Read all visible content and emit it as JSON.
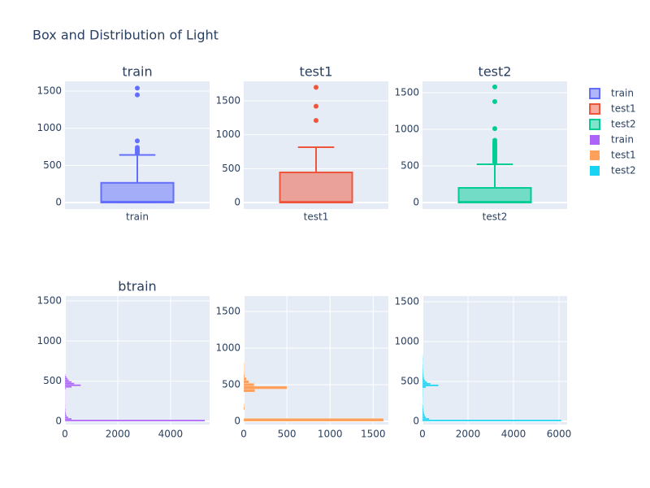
{
  "title": "Box and Distribution of Light",
  "chart_data": [
    {
      "type": "box",
      "title": "train",
      "categories": [
        "train"
      ],
      "series": [
        {
          "name": "train",
          "color": "#636efa",
          "min": 0,
          "q1": 0,
          "median": 10,
          "q3": 265,
          "max": 640,
          "outliers": [
            660,
            680,
            700,
            720,
            740,
            830,
            1450,
            1540
          ]
        }
      ],
      "ylim": [
        -88,
        1632
      ],
      "yticks": [
        0,
        500,
        1000,
        1500
      ],
      "grid": true
    },
    {
      "type": "box",
      "title": "test1",
      "categories": [
        "test1"
      ],
      "series": [
        {
          "name": "test1",
          "color": "#ef553b",
          "min": 0,
          "q1": 0,
          "median": 10,
          "q3": 444,
          "max": 816,
          "outliers": [
            1210,
            1420,
            1700
          ]
        }
      ],
      "ylim": [
        -96,
        1788
      ],
      "yticks": [
        0,
        500,
        1000,
        1500
      ],
      "grid": true
    },
    {
      "type": "box",
      "title": "test2",
      "categories": [
        "test2"
      ],
      "series": [
        {
          "name": "test2",
          "color": "#00cc96",
          "min": 0,
          "q1": 0,
          "median": 10,
          "q3": 200,
          "max": 522,
          "outliers": [
            540,
            560,
            580,
            600,
            620,
            640,
            660,
            680,
            700,
            720,
            740,
            760,
            780,
            800,
            820,
            850,
            1010,
            1380,
            1580
          ]
        }
      ],
      "ylim": [
        -89,
        1656
      ],
      "yticks": [
        0,
        500,
        1000,
        1500
      ],
      "grid": true
    },
    {
      "type": "histogram",
      "orientation": "horizontal",
      "title": "btrain",
      "bins": [
        0,
        20,
        40,
        60,
        80,
        100,
        120,
        140,
        160,
        180,
        200,
        220,
        240,
        260,
        280,
        300,
        320,
        340,
        360,
        380,
        400,
        420,
        440,
        460,
        480,
        500,
        520,
        540,
        560,
        580,
        600
      ],
      "series": [
        {
          "name": "train",
          "color": "#ab63fa",
          "values": [
            5300,
            250,
            120,
            60,
            40,
            30,
            20,
            20,
            15,
            15,
            10,
            10,
            10,
            10,
            10,
            10,
            10,
            10,
            10,
            10,
            30,
            250,
            600,
            350,
            250,
            150,
            100,
            60,
            20,
            10
          ]
        }
      ],
      "xlim": [
        0,
        5480
      ],
      "xticks": [
        0,
        2000,
        4000
      ],
      "ylim": [
        -40,
        1560
      ],
      "yticks": [
        0,
        500,
        1000,
        1500
      ],
      "grid": true
    },
    {
      "type": "histogram",
      "orientation": "horizontal",
      "bins": [
        0,
        40,
        80,
        120,
        160,
        200,
        240,
        280,
        320,
        360,
        400,
        440,
        480,
        520,
        560,
        600,
        640,
        680,
        720,
        760,
        800
      ],
      "series": [
        {
          "name": "test1",
          "color": "#ffa15a",
          "values": [
            1620,
            0,
            0,
            0,
            10,
            5,
            0,
            0,
            0,
            0,
            130,
            500,
            120,
            60,
            30,
            10,
            5,
            5,
            5,
            5
          ]
        }
      ],
      "xlim": [
        0,
        1676
      ],
      "xticks": [
        0,
        500,
        1000,
        1500
      ],
      "ylim": [
        -44,
        1711
      ],
      "yticks": [
        0,
        500,
        1000,
        1500
      ],
      "grid": true
    },
    {
      "type": "histogram",
      "orientation": "horizontal",
      "bins": [
        0,
        20,
        40,
        60,
        80,
        100,
        120,
        140,
        160,
        180,
        200,
        220,
        240,
        260,
        280,
        300,
        320,
        340,
        360,
        380,
        400,
        420,
        440,
        460,
        480,
        500,
        520,
        540,
        560,
        580,
        600,
        620,
        640,
        660,
        680,
        700,
        720,
        740,
        760,
        780,
        800,
        820,
        840
      ],
      "series": [
        {
          "name": "test2",
          "color": "#19d3f3",
          "values": [
            6100,
            300,
            150,
            100,
            80,
            60,
            50,
            40,
            30,
            30,
            20,
            20,
            20,
            20,
            20,
            20,
            20,
            20,
            20,
            20,
            20,
            150,
            700,
            350,
            200,
            120,
            80,
            60,
            50,
            40,
            30,
            30,
            30,
            20,
            20,
            20,
            20,
            20,
            20,
            20,
            10,
            10
          ]
        }
      ],
      "xlim": [
        0,
        6357
      ],
      "xticks": [
        0,
        2000,
        4000,
        6000
      ],
      "ylim": [
        -41,
        1571
      ],
      "yticks": [
        0,
        500,
        1000,
        1500
      ],
      "grid": true
    }
  ]
}
